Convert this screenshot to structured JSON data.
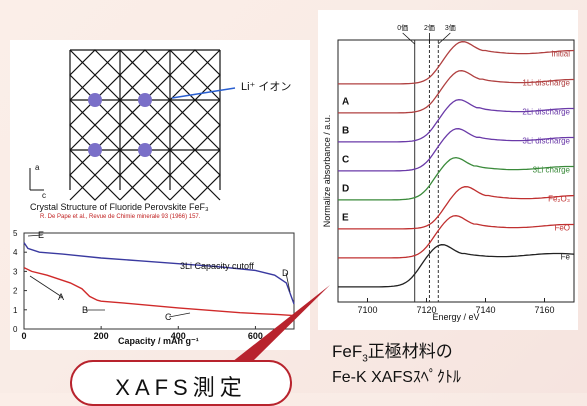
{
  "crystal": {
    "li_label": "Li⁺ イオン",
    "caption": "Crystal Structure of Fluoride Perovskite FeF₃",
    "reference": "R. De Pape et al., Revue de Chimie minerale 93 (1966) 157."
  },
  "capacity_chart": {
    "type": "line",
    "title": "3Li Capacity cutoff",
    "xlabel": "Capacity / mAh g⁻¹",
    "ylabel": "",
    "xlim": [
      0,
      700
    ],
    "ylim": [
      0,
      5
    ],
    "x_ticks": [
      "0",
      "200",
      "400",
      "600"
    ],
    "y_ticks": [
      "0",
      "1",
      "2",
      "3",
      "4",
      "5"
    ],
    "point_labels": [
      "E",
      "A",
      "B",
      "C",
      "D"
    ],
    "series": [
      {
        "color": "#3a3aa0",
        "x": [
          0,
          10,
          40,
          100,
          200,
          300,
          400,
          500,
          600,
          650,
          680,
          700
        ],
        "y": [
          4.5,
          4.2,
          4.0,
          3.9,
          3.7,
          3.55,
          3.4,
          3.25,
          3.05,
          2.8,
          2.4,
          1.3
        ]
      },
      {
        "color": "#d02a2a",
        "x": [
          0,
          20,
          60,
          120,
          150,
          170,
          190,
          200,
          260,
          400,
          560,
          660,
          700
        ],
        "y": [
          3.2,
          3.0,
          2.8,
          2.4,
          2.1,
          1.7,
          1.5,
          1.45,
          1.35,
          1.1,
          0.85,
          0.75,
          0.7
        ]
      }
    ]
  },
  "xafs_chart": {
    "type": "line",
    "title": "",
    "xlabel": "Energy / eV",
    "ylabel": "Normalize absorbance / a.u.",
    "xlim": [
      7090,
      7170
    ],
    "x_ticks": [
      "7100",
      "7120",
      "7140",
      "7160"
    ],
    "valence_labels": [
      "0価",
      "2価",
      "3価"
    ],
    "valence_positions": [
      7116,
      7121,
      7124
    ],
    "row_labels": [
      "A",
      "B",
      "C",
      "D",
      "E"
    ],
    "series": [
      {
        "name": "Initial",
        "color": "#b04040"
      },
      {
        "name": "1Li discharge",
        "color": "#b04040"
      },
      {
        "name": "2Li discharge",
        "color": "#6a3aa8"
      },
      {
        "name": "3Li discharge",
        "color": "#6a3aa8"
      },
      {
        "name": "3Li charge",
        "color": "#3a8a3a"
      },
      {
        "name": "Fe₂O₃",
        "color": "#c03030"
      },
      {
        "name": "FeO",
        "color": "#c03030"
      },
      {
        "name": "Fe",
        "color": "#222222"
      }
    ]
  },
  "badge_text": "XAFS測定",
  "caption": {
    "line1_main": "FeF",
    "line1_sub": "3",
    "line1_rest": "正極材料の",
    "line2": "Fe-K XAFSｽﾍﾟｸﾄﾙ"
  }
}
